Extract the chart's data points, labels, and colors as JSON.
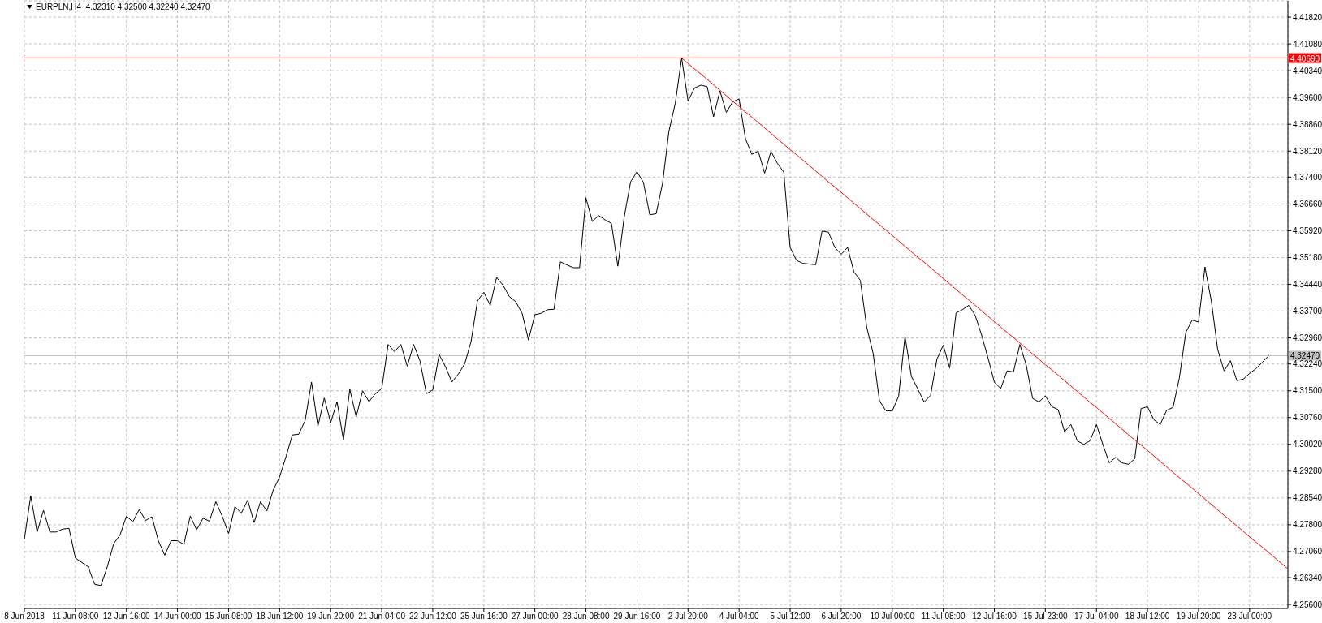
{
  "chart_data": {
    "type": "line",
    "title": "EURPLN,H4  4.32310 4.32500 4.32240 4.32470",
    "grid": true,
    "marker": "none",
    "categories": [
      "8 Jun 2018",
      null,
      null,
      null,
      null,
      null,
      null,
      null,
      "11 Jun 08:00",
      null,
      null,
      null,
      null,
      null,
      null,
      null,
      "12 Jun 16:00",
      null,
      null,
      null,
      null,
      null,
      null,
      null,
      "14 Jun 00:00",
      null,
      null,
      null,
      null,
      null,
      null,
      null,
      "15 Jun 08:00",
      null,
      null,
      null,
      null,
      null,
      null,
      null,
      "18 Jun 12:00",
      null,
      null,
      null,
      null,
      null,
      null,
      null,
      "19 Jun 20:00",
      null,
      null,
      null,
      null,
      null,
      null,
      null,
      "21 Jun 04:00",
      null,
      null,
      null,
      null,
      null,
      null,
      null,
      "22 Jun 12:00",
      null,
      null,
      null,
      null,
      null,
      null,
      null,
      "25 Jun 16:00",
      null,
      null,
      null,
      null,
      null,
      null,
      null,
      "27 Jun 00:00",
      null,
      null,
      null,
      null,
      null,
      null,
      null,
      "28 Jun 08:00",
      null,
      null,
      null,
      null,
      null,
      null,
      null,
      "29 Jun 16:00",
      null,
      null,
      null,
      null,
      null,
      null,
      null,
      "2 Jul 20:00",
      null,
      null,
      null,
      null,
      null,
      null,
      null,
      "4 Jul 04:00",
      null,
      null,
      null,
      null,
      null,
      null,
      null,
      "5 Jul 12:00",
      null,
      null,
      null,
      null,
      null,
      null,
      null,
      "6 Jul 20:00",
      null,
      null,
      null,
      null,
      null,
      null,
      null,
      "10 Jul 00:00",
      null,
      null,
      null,
      null,
      null,
      null,
      null,
      "11 Jul 08:00",
      null,
      null,
      null,
      null,
      null,
      null,
      null,
      "12 Jul 16:00",
      null,
      null,
      null,
      null,
      null,
      null,
      null,
      "15 Jul 23:00",
      null,
      null,
      null,
      null,
      null,
      null,
      null,
      "17 Jul 04:00",
      null,
      null,
      null,
      null,
      null,
      null,
      null,
      "18 Jul 12:00",
      null,
      null,
      null,
      null,
      null,
      null,
      null,
      "19 Jul 20:00",
      null,
      null,
      null,
      null,
      null,
      null,
      null,
      "23 Jul 00:00",
      null,
      null,
      null,
      null,
      null,
      null
    ],
    "ylim": [
      4.2549,
      4.4227
    ],
    "yticks": [
      {
        "value": 4.256,
        "label": "4.25600"
      },
      {
        "value": 4.2634,
        "label": "4.26340"
      },
      {
        "value": 4.2706,
        "label": "4.27060"
      },
      {
        "value": 4.278,
        "label": "4.27800"
      },
      {
        "value": 4.2854,
        "label": "4.28540"
      },
      {
        "value": 4.2928,
        "label": "4.29280"
      },
      {
        "value": 4.3002,
        "label": "4.30020"
      },
      {
        "value": 4.3076,
        "label": "4.30760"
      },
      {
        "value": 4.315,
        "label": "4.31500"
      },
      {
        "value": 4.3224,
        "label": "4.32240"
      },
      {
        "value": 4.3296,
        "label": "4.32960"
      },
      {
        "value": 4.337,
        "label": "4.33700"
      },
      {
        "value": 4.3444,
        "label": "4.34440"
      },
      {
        "value": 4.3518,
        "label": "4.35180"
      },
      {
        "value": 4.3592,
        "label": "4.35920"
      },
      {
        "value": 4.3666,
        "label": "4.36660"
      },
      {
        "value": 4.374,
        "label": "4.37400"
      },
      {
        "value": 4.3812,
        "label": "4.38120"
      },
      {
        "value": 4.3886,
        "label": "4.38860"
      },
      {
        "value": 4.396,
        "label": "4.39600"
      },
      {
        "value": 4.4034,
        "label": "4.40340"
      },
      {
        "value": 4.4108,
        "label": "4.41080"
      },
      {
        "value": 4.4182,
        "label": "4.41820"
      }
    ],
    "series": [
      {
        "color": "#000000",
        "values": [
          4.274,
          4.286,
          4.276,
          4.282,
          4.276,
          4.276,
          4.2768,
          4.277,
          4.2688,
          4.2676,
          4.2664,
          4.2616,
          4.2612,
          4.2664,
          4.2728,
          4.2752,
          4.2804,
          4.2788,
          4.2822,
          4.2792,
          4.2802,
          4.2736,
          4.2696,
          4.2736,
          4.2736,
          4.2726,
          4.2804,
          4.2766,
          4.2798,
          4.279,
          4.2844,
          4.2804,
          4.2756,
          4.283,
          4.2812,
          4.2848,
          4.2786,
          4.2844,
          4.2818,
          4.2876,
          4.2912,
          4.2968,
          4.3028,
          4.303,
          4.3068,
          4.3174,
          4.3052,
          4.313,
          4.3062,
          4.312,
          4.3014,
          4.3154,
          4.3078,
          4.315,
          4.312,
          4.3142,
          4.3156,
          4.3278,
          4.3258,
          4.3278,
          4.3218,
          4.3278,
          4.3232,
          4.3142,
          4.3152,
          4.325,
          4.3216,
          4.3174,
          4.3196,
          4.3224,
          4.3286,
          4.3398,
          4.3422,
          4.3386,
          4.3463,
          4.3442,
          4.341,
          4.3396,
          4.3364,
          4.329,
          4.336,
          4.3364,
          4.3374,
          4.3375,
          4.3506,
          4.3498,
          4.349,
          4.349,
          4.3683,
          4.3618,
          4.3634,
          4.3622,
          4.3612,
          4.3494,
          4.363,
          4.3727,
          4.3755,
          4.3726,
          4.3636,
          4.3639,
          4.3722,
          4.3866,
          4.3944,
          4.4069,
          4.395,
          4.3986,
          4.3994,
          4.399,
          4.3907,
          4.3978,
          4.3919,
          4.3948,
          4.3956,
          4.3846,
          4.3803,
          4.3812,
          4.3751,
          4.3811,
          4.3778,
          4.3754,
          4.3546,
          4.351,
          4.3502,
          4.35,
          4.3498,
          4.3591,
          4.3588,
          4.3546,
          4.3527,
          4.3546,
          4.3478,
          4.3455,
          4.3326,
          4.3254,
          4.3122,
          4.3095,
          4.3094,
          4.3135,
          4.33,
          4.319,
          4.3155,
          4.3119,
          4.3137,
          4.3237,
          4.3276,
          4.3213,
          4.3365,
          4.3374,
          4.3386,
          4.3358,
          4.3304,
          4.3241,
          4.3174,
          4.3156,
          4.3205,
          4.3202,
          4.3278,
          4.3221,
          4.3129,
          4.3119,
          4.3136,
          4.3106,
          4.3098,
          4.3037,
          4.3057,
          4.3012,
          4.3002,
          4.3012,
          4.3057,
          4.3002,
          4.2951,
          4.2966,
          4.2951,
          4.2947,
          4.2962,
          4.3101,
          4.3106,
          4.307,
          4.3057,
          4.3096,
          4.3104,
          4.3186,
          4.3311,
          4.3345,
          4.334,
          4.3492,
          4.3398,
          4.3264,
          4.3205,
          4.3233,
          4.3178,
          4.3182,
          4.3198,
          4.3211,
          4.3229,
          4.3247,
          null,
          null,
          null
        ]
      },
      {
        "type": "line",
        "color": "#ff0000",
        "values": [
          null,
          null,
          null,
          null,
          null,
          null,
          null,
          null,
          null,
          null,
          null,
          null,
          null,
          null,
          null,
          null,
          null,
          null,
          null,
          null,
          null,
          null,
          null,
          null,
          null,
          null,
          null,
          null,
          null,
          null,
          null,
          null,
          null,
          null,
          null,
          null,
          null,
          null,
          null,
          null,
          null,
          null,
          null,
          null,
          null,
          null,
          null,
          null,
          null,
          null,
          null,
          null,
          null,
          null,
          null,
          null,
          null,
          null,
          null,
          null,
          null,
          null,
          null,
          null,
          null,
          null,
          null,
          null,
          null,
          null,
          null,
          null,
          null,
          null,
          null,
          null,
          null,
          null,
          null,
          null,
          null,
          null,
          null,
          null,
          null,
          null,
          null,
          null,
          null,
          null,
          null,
          null,
          null,
          null,
          null,
          null,
          null,
          null,
          null,
          null,
          null,
          null,
          null,
          4.4069,
          4.4054,
          4.4039,
          4.4025,
          4.401,
          4.3995,
          4.398,
          4.3965,
          4.395,
          4.3935,
          4.392,
          4.3906,
          4.3891,
          4.3876,
          4.3861,
          4.3846,
          4.3831,
          4.3816,
          4.3802,
          4.3787,
          4.3772,
          4.3757,
          4.3742,
          4.3727,
          4.3713,
          4.3698,
          4.3683,
          4.3668,
          4.3653,
          4.3638,
          4.3623,
          4.3609,
          4.3594,
          4.3579,
          4.3564,
          4.3549,
          4.3534,
          4.3519,
          4.3505,
          4.349,
          4.3475,
          4.346,
          4.3445,
          4.343,
          4.3415,
          4.3401,
          4.3386,
          4.3371,
          4.3356,
          4.3341,
          4.3326,
          4.3311,
          4.3297,
          4.3282,
          4.3267,
          4.3252,
          4.3237,
          4.3222,
          4.3208,
          4.3193,
          4.3178,
          4.3163,
          4.3148,
          4.3133,
          4.3118,
          4.3104,
          4.3089,
          4.3074,
          4.3059,
          4.3044,
          4.3029,
          4.3014,
          4.3,
          4.2985,
          4.297,
          4.2955,
          4.294,
          4.2925,
          4.291,
          4.2896,
          4.2881,
          4.2866,
          4.2851,
          4.2836,
          4.2821,
          4.2806,
          4.2792,
          4.2777,
          4.2762,
          4.2747,
          4.2732,
          4.2718,
          4.2703,
          4.2688,
          4.2673,
          4.2658
        ]
      }
    ],
    "ref_lines": [
      {
        "axis": "y",
        "value": 4.4069,
        "label": "4.40690",
        "color": "#ff0000"
      },
      {
        "axis": "y",
        "value": 4.3247,
        "label": "4.32470",
        "color": "#c0c0c0"
      }
    ]
  }
}
